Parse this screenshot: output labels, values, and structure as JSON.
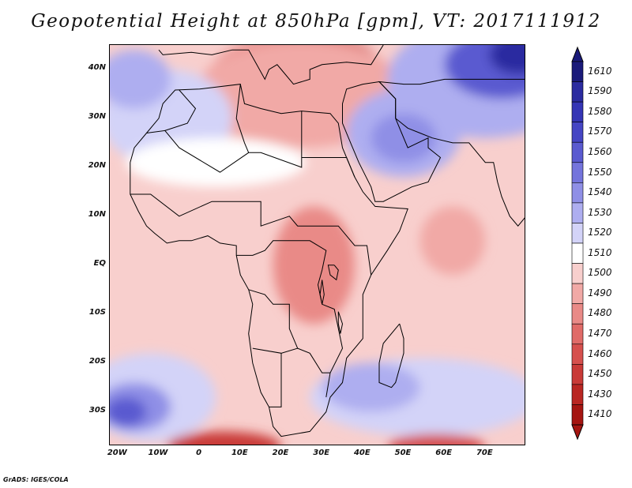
{
  "title": "Geopotential Height at 850hPa [gpm], VT: 2017111912",
  "credit": "GrADS: IGES/COLA",
  "lat_ticks": [
    {
      "label": "40N",
      "lat": 40
    },
    {
      "label": "30N",
      "lat": 30
    },
    {
      "label": "20N",
      "lat": 20
    },
    {
      "label": "10N",
      "lat": 10
    },
    {
      "label": "EQ",
      "lat": 0
    },
    {
      "label": "10S",
      "lat": -10
    },
    {
      "label": "20S",
      "lat": -20
    },
    {
      "label": "30S",
      "lat": -30
    }
  ],
  "lon_ticks": [
    {
      "label": "20W",
      "lon": -20
    },
    {
      "label": "10W",
      "lon": -10
    },
    {
      "label": "0",
      "lon": 0
    },
    {
      "label": "10E",
      "lon": 10
    },
    {
      "label": "20E",
      "lon": 20
    },
    {
      "label": "30E",
      "lon": 30
    },
    {
      "label": "40E",
      "lon": 40
    },
    {
      "label": "50E",
      "lon": 50
    },
    {
      "label": "60E",
      "lon": 60
    },
    {
      "label": "70E",
      "lon": 70
    }
  ],
  "colorbar": {
    "levels": [
      "1610",
      "1590",
      "1580",
      "1570",
      "1560",
      "1550",
      "1540",
      "1530",
      "1520",
      "1510",
      "1500",
      "1490",
      "1480",
      "1470",
      "1460",
      "1450",
      "1430",
      "1410"
    ],
    "colors": [
      "#1a1a7a",
      "#2b2ba0",
      "#3535b5",
      "#4545c4",
      "#5a5ad0",
      "#7474dc",
      "#8f8fe6",
      "#aeaef0",
      "#d3d3f8",
      "#ffffff",
      "#f8cfcd",
      "#f1a9a6",
      "#e98a87",
      "#e06b68",
      "#d6504d",
      "#c93a37",
      "#b92622",
      "#a51511"
    ],
    "top_arrow_color": "#1a1a7a",
    "bottom_arrow_color": "#a51511"
  },
  "map_extent": {
    "lon_min": -22,
    "lon_max": 80,
    "lat_min": -37,
    "lat_max": 45
  },
  "fields": [
    {
      "name": "mediterranean-low",
      "color": "#c93a37",
      "lon": 28,
      "lat": 41,
      "rx": 16,
      "ry": 6
    },
    {
      "name": "mediterranean-low-core",
      "color": "#a51511",
      "lon": 30,
      "lat": 42,
      "rx": 9,
      "ry": 3.5
    },
    {
      "name": "mediterranean-fringe",
      "color": "#e06b68",
      "lon": 24,
      "lat": 38,
      "rx": 22,
      "ry": 9
    },
    {
      "name": "mediterranean-outer",
      "color": "#f1a9a6",
      "lon": 25,
      "lat": 35,
      "rx": 26,
      "ry": 11
    },
    {
      "name": "asia-high-outer",
      "color": "#aeaef0",
      "lon": 70,
      "lat": 38,
      "rx": 24,
      "ry": 12
    },
    {
      "name": "asia-high-mid",
      "color": "#5a5ad0",
      "lon": 74,
      "lat": 41,
      "rx": 14,
      "ry": 7
    },
    {
      "name": "asia-high-core",
      "color": "#2b2ba0",
      "lon": 78,
      "lat": 43,
      "rx": 7,
      "ry": 4
    },
    {
      "name": "arabia-high",
      "color": "#aeaef0",
      "lon": 50,
      "lat": 27,
      "rx": 14,
      "ry": 9
    },
    {
      "name": "arabia-high-core",
      "color": "#8f8fe6",
      "lon": 50,
      "lat": 26,
      "rx": 8,
      "ry": 5
    },
    {
      "name": "northwest-africa-high",
      "color": "#d3d3f8",
      "lon": -8,
      "lat": 30,
      "rx": 16,
      "ry": 10
    },
    {
      "name": "atlantic-high",
      "color": "#aeaef0",
      "lon": -16,
      "lat": 38,
      "rx": 9,
      "ry": 6
    },
    {
      "name": "sahara-neutral",
      "color": "#ffffff",
      "lon": 4,
      "lat": 21,
      "rx": 22,
      "ry": 5
    },
    {
      "name": "central-africa-trough",
      "color": "#e98a87",
      "lon": 28,
      "lat": 0,
      "rx": 10,
      "ry": 12
    },
    {
      "name": "south-atlantic-high-outer",
      "color": "#d3d3f8",
      "lon": -12,
      "lat": -27,
      "rx": 16,
      "ry": 9
    },
    {
      "name": "south-atlantic-high",
      "color": "#8f8fe6",
      "lon": -16,
      "lat": -29,
      "rx": 9,
      "ry": 5
    },
    {
      "name": "south-atlantic-high-core",
      "color": "#5a5ad0",
      "lon": -18,
      "lat": -30,
      "rx": 5,
      "ry": 3
    },
    {
      "name": "south-indian-high-outer",
      "color": "#d3d3f8",
      "lon": 55,
      "lat": -27,
      "rx": 28,
      "ry": 8
    },
    {
      "name": "south-indian-high",
      "color": "#aeaef0",
      "lon": 42,
      "lat": -25,
      "rx": 12,
      "ry": 5
    },
    {
      "name": "southern-low-west",
      "color": "#c93a37",
      "lon": 6,
      "lat": -37,
      "rx": 14,
      "ry": 3
    },
    {
      "name": "southern-low-east",
      "color": "#d6504d",
      "lon": 58,
      "lat": -37,
      "rx": 12,
      "ry": 2.5
    },
    {
      "name": "indian-ocean-low",
      "color": "#f1a9a6",
      "lon": 62,
      "lat": 5,
      "rx": 8,
      "ry": 7
    }
  ]
}
